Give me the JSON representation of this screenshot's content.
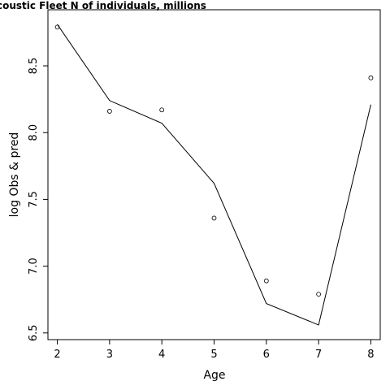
{
  "chart_data": {
    "type": "line",
    "title": "coustic Fleet   N of individuals, millions",
    "xlabel": "Age",
    "ylabel": "log Obs & pred",
    "x": [
      2,
      3,
      4,
      5,
      6,
      7,
      8
    ],
    "xlim": [
      1.82,
      8.18
    ],
    "ylim": [
      6.45,
      8.92
    ],
    "xticks": [
      "2",
      "3",
      "4",
      "5",
      "6",
      "7",
      "8"
    ],
    "yticks": [
      "6.5",
      "7.0",
      "7.5",
      "8.0",
      "8.5"
    ],
    "grid": false,
    "series": [
      {
        "style": "line",
        "values": [
          8.81,
          8.24,
          8.07,
          7.62,
          6.72,
          6.56,
          8.21
        ]
      },
      {
        "style": "points",
        "values": [
          8.79,
          8.16,
          8.17,
          7.36,
          6.89,
          6.79,
          8.41
        ]
      }
    ]
  }
}
